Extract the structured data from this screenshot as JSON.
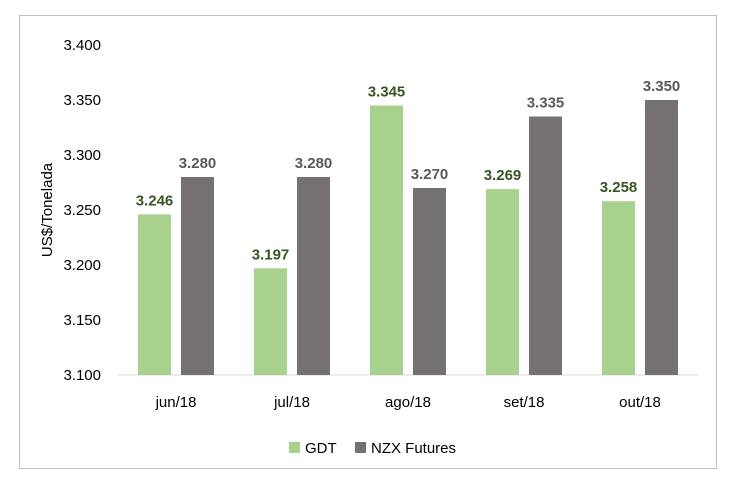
{
  "chart_data": {
    "type": "bar",
    "categories": [
      "jun/18",
      "jul/18",
      "ago/18",
      "set/18",
      "out/18"
    ],
    "series": [
      {
        "name": "GDT",
        "color": "#a9d18e",
        "label_color": "#375623",
        "values": [
          3246,
          3197,
          3345,
          3269,
          3258
        ],
        "labels": [
          "3.246",
          "3.197",
          "3.345",
          "3.269",
          "3.258"
        ]
      },
      {
        "name": "NZX Futures",
        "color": "#767171",
        "label_color": "#595959",
        "values": [
          3280,
          3280,
          3270,
          3335,
          3350
        ],
        "labels": [
          "3.280",
          "3.280",
          "3.270",
          "3.335",
          "3.350"
        ]
      }
    ],
    "ylabel": "US$/Tonelada",
    "xlabel": "",
    "ylim": [
      3100,
      3400
    ],
    "yticks": [
      3100,
      3150,
      3200,
      3250,
      3300,
      3350,
      3400
    ],
    "ytick_labels": [
      "3.100",
      "3.150",
      "3.200",
      "3.250",
      "3.300",
      "3.350",
      "3.400"
    ],
    "grid": false,
    "legend_position": "bottom"
  }
}
